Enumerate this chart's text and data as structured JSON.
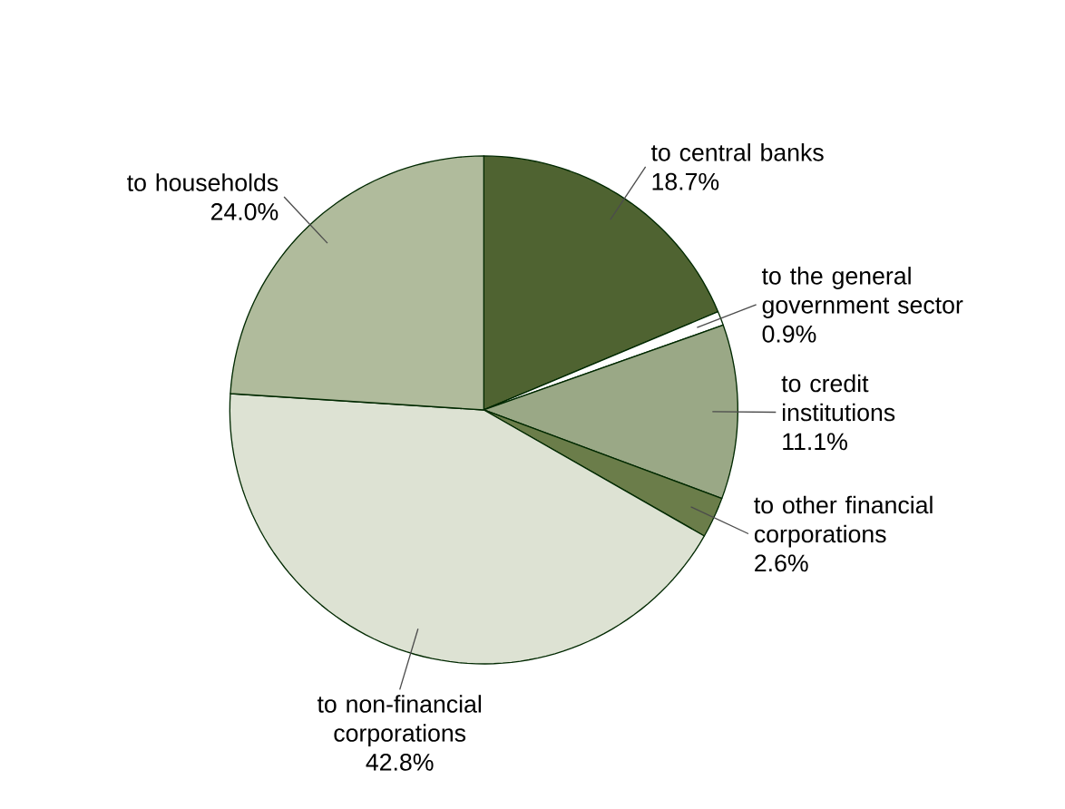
{
  "chart_data": {
    "type": "pie",
    "categories": [
      "to central banks",
      "to the general government sector",
      "to credit institutions",
      "to other financial corporations",
      "to non-financial corporations",
      "to households"
    ],
    "values": [
      18.7,
      0.9,
      11.1,
      2.6,
      42.8,
      24.0
    ],
    "value_labels": [
      "18.7%",
      "0.9%",
      "11.1%",
      "2.6%",
      "42.8%",
      "24.0%"
    ],
    "colors": [
      "#4f6331",
      "#ffffff",
      "#9aa886",
      "#6b7d4a",
      "#dde2d3",
      "#b0bb9c"
    ]
  }
}
